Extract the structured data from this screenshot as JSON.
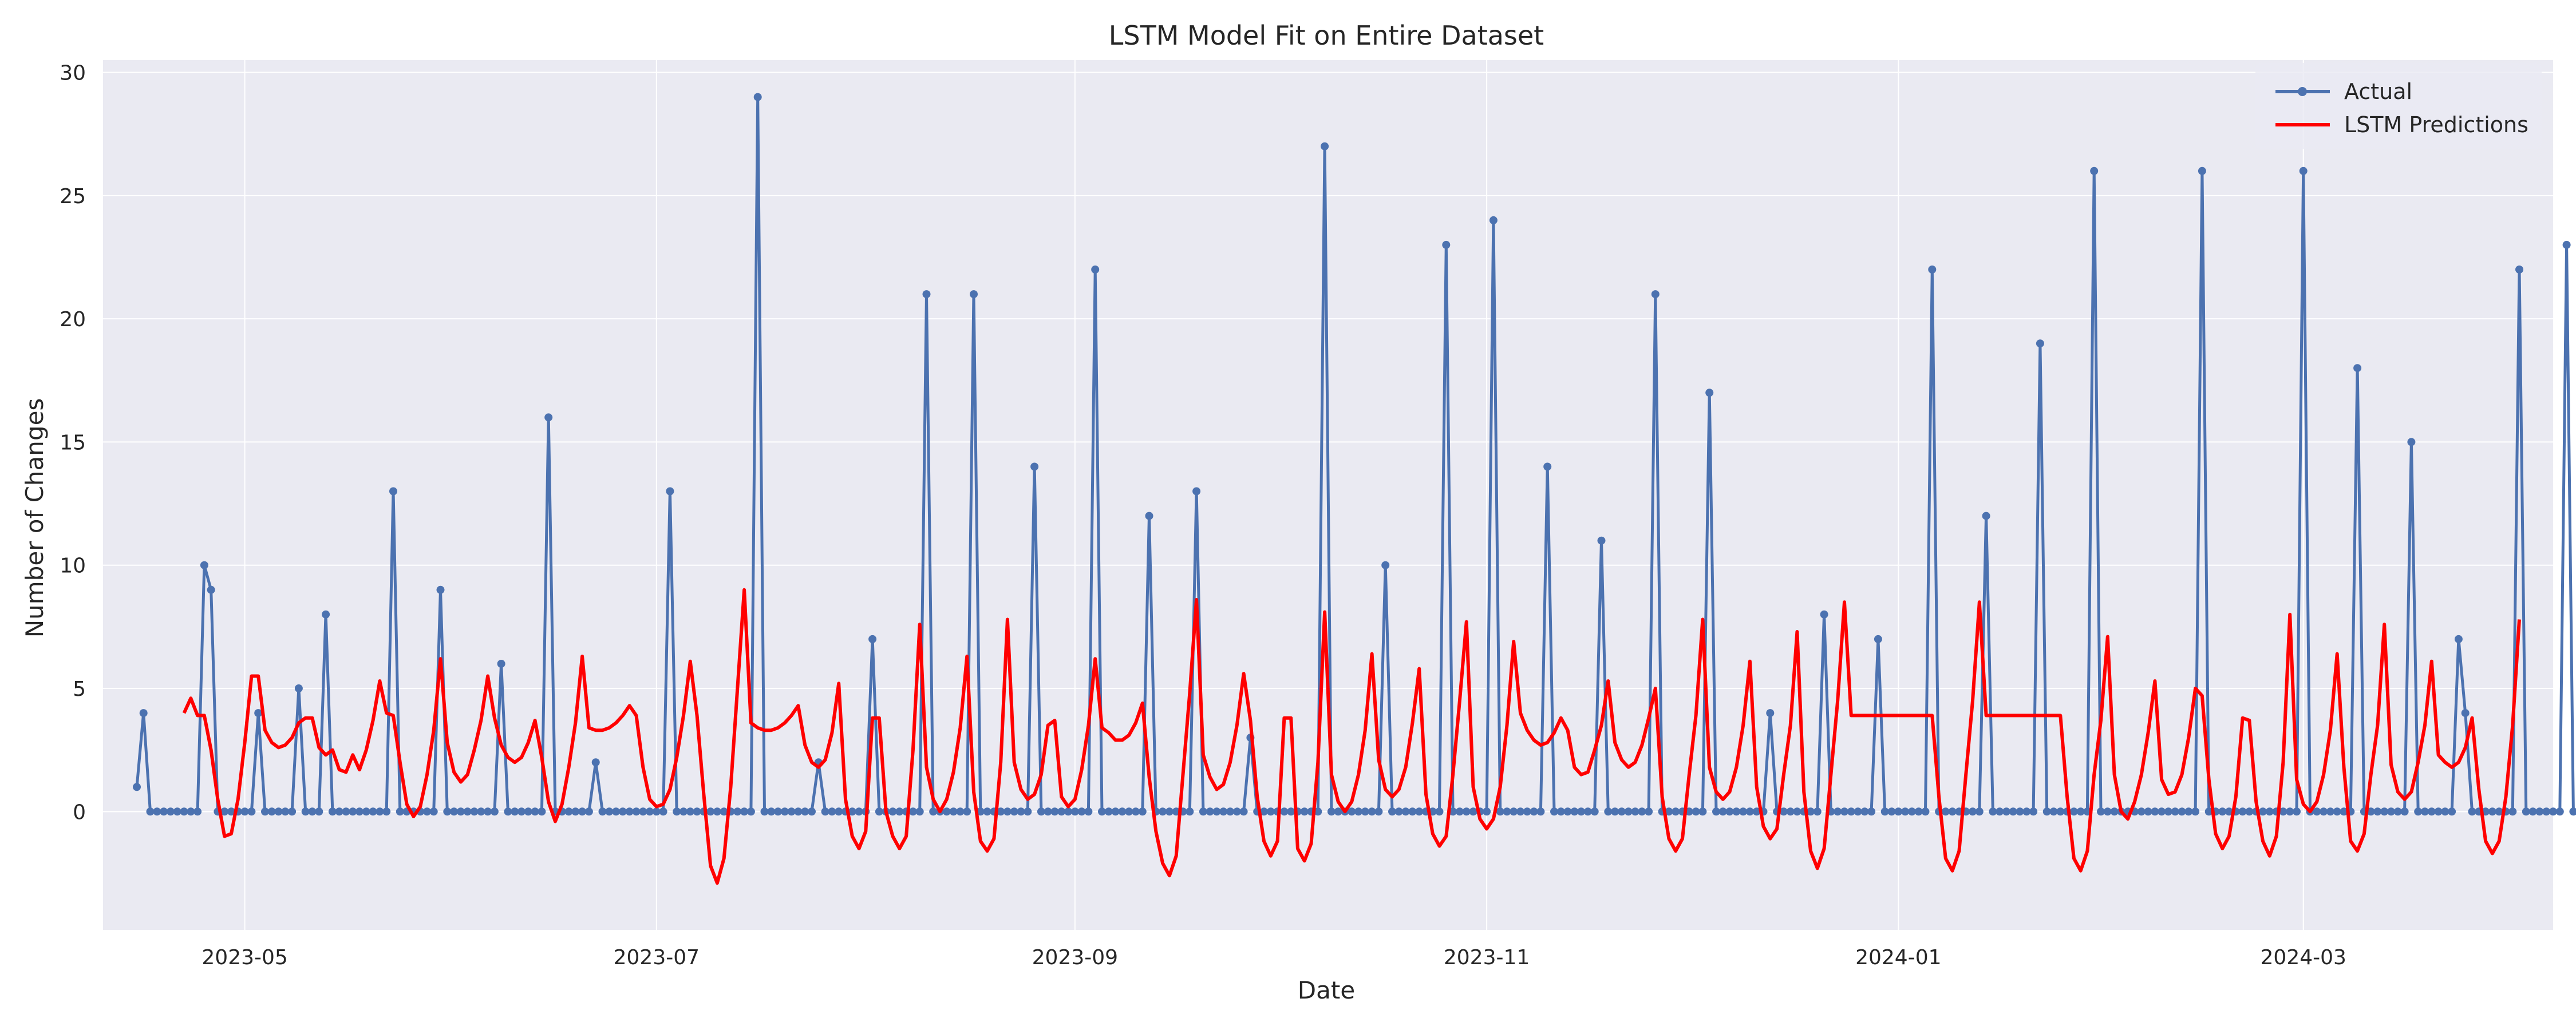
{
  "chart_data": {
    "type": "line",
    "title": "LSTM Model Fit on Entire Dataset",
    "xlabel": "Date",
    "ylabel": "Number of Changes",
    "ylim": [
      -4.8,
      30.5
    ],
    "xlim": [
      "2023-04-10",
      "2024-04-07"
    ],
    "grid": true,
    "legend_position": "top-right",
    "x_ticks": [
      "2023-05-01",
      "2023-07-01",
      "2023-09-01",
      "2023-11-01",
      "2024-01-01",
      "2024-03-01"
    ],
    "x_tick_labels": [
      "2023-05",
      "2023-07",
      "2023-09",
      "2023-11",
      "2024-01",
      "2024-03"
    ],
    "y_ticks": [
      0,
      5,
      10,
      15,
      20,
      25,
      30
    ],
    "y_tick_labels": [
      "0",
      "5",
      "10",
      "15",
      "20",
      "25",
      "30"
    ],
    "series": [
      {
        "name": "Actual",
        "color": "#4c72b0",
        "marker": "circle",
        "start_date": "2023-04-15",
        "values": [
          1,
          4,
          0,
          0,
          0,
          0,
          0,
          0,
          0,
          0,
          10,
          9,
          0,
          0,
          0,
          0,
          0,
          0,
          4,
          0,
          0,
          0,
          0,
          0,
          5,
          0,
          0,
          0,
          8,
          0,
          0,
          0,
          0,
          0,
          0,
          0,
          0,
          0,
          13,
          0,
          0,
          0,
          0,
          0,
          0,
          9,
          0,
          0,
          0,
          0,
          0,
          0,
          0,
          0,
          6,
          0,
          0,
          0,
          0,
          0,
          0,
          16,
          0,
          0,
          0,
          0,
          0,
          0,
          2,
          0,
          0,
          0,
          0,
          0,
          0,
          0,
          0,
          0,
          0,
          13,
          0,
          0,
          0,
          0,
          0,
          0,
          0,
          0,
          0,
          0,
          0,
          0,
          29,
          0,
          0,
          0,
          0,
          0,
          0,
          0,
          0,
          2,
          0,
          0,
          0,
          0,
          0,
          0,
          0,
          7,
          0,
          0,
          0,
          0,
          0,
          0,
          0,
          21,
          0,
          0,
          0,
          0,
          0,
          0,
          21,
          0,
          0,
          0,
          0,
          0,
          0,
          0,
          0,
          14,
          0,
          0,
          0,
          0,
          0,
          0,
          0,
          0,
          22,
          0,
          0,
          0,
          0,
          0,
          0,
          0,
          12,
          0,
          0,
          0,
          0,
          0,
          0,
          13,
          0,
          0,
          0,
          0,
          0,
          0,
          0,
          3,
          0,
          0,
          0,
          0,
          0,
          0,
          0,
          0,
          0,
          0,
          27,
          0,
          0,
          0,
          0,
          0,
          0,
          0,
          0,
          10,
          0,
          0,
          0,
          0,
          0,
          0,
          0,
          0,
          23,
          0,
          0,
          0,
          0,
          0,
          0,
          24,
          0,
          0,
          0,
          0,
          0,
          0,
          0,
          14,
          0,
          0,
          0,
          0,
          0,
          0,
          0,
          11,
          0,
          0,
          0,
          0,
          0,
          0,
          0,
          21,
          0,
          0,
          0,
          0,
          0,
          0,
          0,
          17,
          0,
          0,
          0,
          0,
          0,
          0,
          0,
          0,
          4,
          0,
          0,
          0,
          0,
          0,
          0,
          0,
          8,
          0,
          0,
          0,
          0,
          0,
          0,
          0,
          7,
          0,
          0,
          0,
          0,
          0,
          0,
          0,
          22,
          0,
          0,
          0,
          0,
          0,
          0,
          0,
          12,
          0,
          0,
          0,
          0,
          0,
          0,
          0,
          19,
          0,
          0,
          0,
          0,
          0,
          0,
          0,
          26,
          0,
          0,
          0,
          0,
          0,
          0,
          0,
          0,
          0,
          0,
          0,
          0,
          0,
          0,
          0,
          26,
          0,
          0,
          0,
          0,
          0,
          0,
          0,
          0,
          0,
          0,
          0,
          0,
          0,
          0,
          26,
          0,
          0,
          0,
          0,
          0,
          0,
          0,
          18,
          0,
          0,
          0,
          0,
          0,
          0,
          0,
          15,
          0,
          0,
          0,
          0,
          0,
          0,
          7,
          4,
          0,
          0,
          0,
          0,
          0,
          0,
          0,
          22,
          0,
          0,
          0,
          0,
          0,
          0,
          23,
          0,
          0,
          0,
          0,
          0,
          0,
          0,
          14,
          0,
          0,
          0,
          0,
          0,
          0,
          0,
          2,
          21,
          0,
          0,
          0,
          0,
          0,
          0,
          0,
          12,
          0,
          0,
          0,
          0,
          0,
          0,
          7,
          0,
          0,
          0,
          0,
          0,
          0,
          22,
          0,
          0,
          0,
          0,
          0,
          0,
          20
        ]
      },
      {
        "name": "LSTM Predictions",
        "color": "#ff0000",
        "marker": "none",
        "start_date": "2023-04-22",
        "values": [
          4,
          4.6,
          3.9,
          3.9,
          2.5,
          0.5,
          -1,
          -0.9,
          0.5,
          2.8,
          5.5,
          5.5,
          3.3,
          2.8,
          2.6,
          2.7,
          3,
          3.6,
          3.8,
          3.8,
          2.6,
          2.3,
          2.5,
          1.7,
          1.6,
          2.3,
          1.7,
          2.5,
          3.7,
          5.3,
          4,
          3.9,
          2,
          0.3,
          -0.2,
          0.2,
          1.5,
          3.3,
          6.2,
          2.8,
          1.6,
          1.2,
          1.5,
          2.5,
          3.7,
          5.5,
          3.8,
          2.7,
          2.2,
          2,
          2.2,
          2.8,
          3.7,
          2.2,
          0.4,
          -0.4,
          0.3,
          1.8,
          3.6,
          6.3,
          3.4,
          3.3,
          3.3,
          3.4,
          3.6,
          3.9,
          4.3,
          3.9,
          1.8,
          0.5,
          0.2,
          0.3,
          0.9,
          2.2,
          3.9,
          6.1,
          3.9,
          0.7,
          -2.2,
          -2.9,
          -1.9,
          1,
          5,
          9,
          3.6,
          3.4,
          3.3,
          3.3,
          3.4,
          3.6,
          3.9,
          4.3,
          2.7,
          2,
          1.8,
          2.1,
          3.2,
          5.2,
          0.5,
          -1,
          -1.5,
          -0.8,
          3.8,
          3.8,
          0,
          -1,
          -1.5,
          -1,
          2.5,
          7.6,
          1.8,
          0.5,
          0,
          0.5,
          1.6,
          3.4,
          6.3,
          0.8,
          -1.2,
          -1.6,
          -1.1,
          2,
          7.8,
          2,
          0.9,
          0.5,
          0.7,
          1.5,
          3.5,
          3.7,
          0.6,
          0.2,
          0.5,
          1.7,
          3.5,
          6.2,
          3.4,
          3.2,
          2.9,
          2.9,
          3.1,
          3.6,
          4.4,
          1.4,
          -0.8,
          -2.1,
          -2.6,
          -1.8,
          1.5,
          4.8,
          8.6,
          2.3,
          1.4,
          0.9,
          1.1,
          2,
          3.5,
          5.6,
          3.7,
          0.6,
          -1.2,
          -1.8,
          -1.2,
          3.8,
          3.8,
          -1.5,
          -2,
          -1.3,
          2,
          8.1,
          1.5,
          0.4,
          0,
          0.4,
          1.5,
          3.3,
          6.4,
          2.1,
          0.9,
          0.6,
          0.9,
          1.8,
          3.6,
          5.8,
          0.7,
          -0.9,
          -1.4,
          -1,
          1.5,
          4.5,
          7.7,
          1,
          -0.3,
          -0.7,
          -0.3,
          1,
          3.5,
          6.9,
          4,
          3.3,
          2.9,
          2.7,
          2.8,
          3.2,
          3.8,
          3.3,
          1.8,
          1.5,
          1.6,
          2.5,
          3.5,
          5.3,
          2.8,
          2.1,
          1.8,
          2,
          2.7,
          3.8,
          5,
          0.6,
          -1.1,
          -1.6,
          -1.1,
          1.5,
          3.9,
          7.8,
          1.8,
          0.8,
          0.5,
          0.8,
          1.8,
          3.5,
          6.1,
          1,
          -0.6,
          -1.1,
          -0.7,
          1.5,
          3.5,
          7.3,
          0.8,
          -1.6,
          -2.3,
          -1.5,
          1.5,
          4.5,
          8.5,
          3.9,
          3.9,
          3.9,
          3.9,
          3.9,
          3.9,
          3.9,
          3.9,
          3.9,
          3.9,
          3.9,
          3.9,
          3.9,
          0.6,
          -1.9,
          -2.4,
          -1.6,
          1.5,
          4.5,
          8.5,
          3.9,
          3.9,
          3.9,
          3.9,
          3.9,
          3.9,
          3.9,
          3.9,
          3.9,
          3.9,
          3.9,
          3.9,
          0.6,
          -1.9,
          -2.4,
          -1.6,
          1.5,
          3.7,
          7.1,
          1.5,
          0,
          -0.3,
          0.4,
          1.5,
          3.2,
          5.3,
          1.3,
          0.7,
          0.8,
          1.5,
          3,
          5,
          4.7,
          1.3,
          -0.9,
          -1.5,
          -1,
          0.6,
          3.8,
          3.7,
          0.4,
          -1.2,
          -1.8,
          -1,
          2,
          8,
          1.3,
          0.3,
          0,
          0.4,
          1.5,
          3.3,
          6.4,
          1.8,
          -1.2,
          -1.6,
          -0.9,
          1.5,
          3.5,
          7.6,
          1.9,
          0.8,
          0.5,
          0.8,
          2,
          3.5,
          6.1,
          2.3,
          2,
          1.8,
          2,
          2.6,
          3.8,
          0.9,
          -1.2,
          -1.7,
          -1.2,
          0.6,
          3.5,
          7.8
        ]
      }
    ]
  }
}
